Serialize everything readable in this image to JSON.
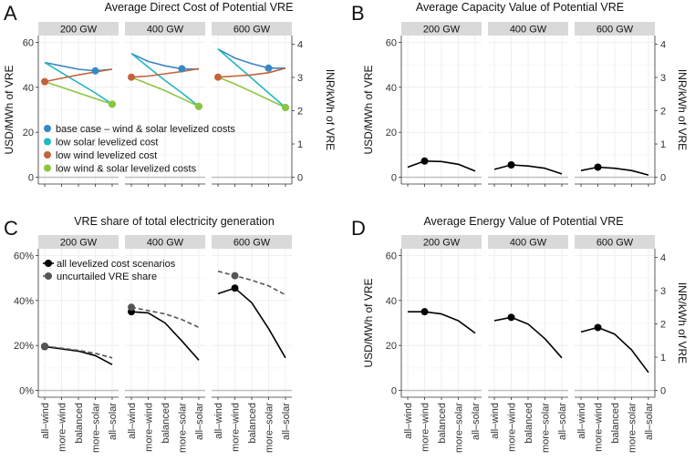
{
  "chart_data": [
    {
      "id": "A",
      "type": "line",
      "letter": "A",
      "title": "Average Direct Cost of Potential VRE",
      "ylabel": "USD/MWh of VRE",
      "y2label": "INR/kWh of VRE",
      "ylim": [
        -3,
        63
      ],
      "yticks": [
        0,
        20,
        40,
        60
      ],
      "y2ticks": [
        0,
        1,
        2,
        3,
        4
      ],
      "y2_per_y1": 14.8,
      "facets": [
        "200 GW",
        "400 GW",
        "600 GW"
      ],
      "categories": [
        "all–wind",
        "more–wind",
        "balanced",
        "more–solar",
        "all–solar"
      ],
      "legend": [
        {
          "name": "base case – wind & solar levelized costs",
          "color": "#3b86c2"
        },
        {
          "name": "low solar levelized cost",
          "color": "#22b7c3"
        },
        {
          "name": "low wind levelized cost",
          "color": "#c3633c"
        },
        {
          "name": "low wind & solar levelized costs",
          "color": "#8cc63f"
        }
      ],
      "series": [
        {
          "name": "base case – wind & solar levelized costs",
          "color": "#3b86c2",
          "highlight": 3,
          "values": [
            [
              51,
              49.5,
              48,
              47.3,
              48
            ],
            [
              55,
              51.5,
              49.5,
              48.2,
              48
            ],
            [
              57,
              53,
              50.5,
              48.5,
              48.5
            ]
          ]
        },
        {
          "name": "low solar levelized cost",
          "color": "#22b7c3",
          "highlight": 4,
          "values": [
            [
              51,
              46.5,
              42,
              37.5,
              32.5
            ],
            [
              55,
              49,
              43,
              37.5,
              31.5
            ],
            [
              57,
              50.5,
              44,
              37.5,
              31
            ]
          ]
        },
        {
          "name": "low wind levelized cost",
          "color": "#c3633c",
          "highlight": 0,
          "values": [
            [
              42.5,
              44,
              45.5,
              46.8,
              48
            ],
            [
              44.5,
              45,
              46,
              47,
              48.3
            ],
            [
              44.5,
              45,
              45.5,
              46.5,
              48.5
            ]
          ]
        },
        {
          "name": "low wind & solar levelized costs",
          "color": "#8cc63f",
          "highlight": 4,
          "values": [
            [
              42.5,
              40,
              37.5,
              35,
              32.5
            ],
            [
              44.5,
              41.5,
              38.5,
              35,
              31.5
            ],
            [
              44.5,
              41.5,
              38,
              34.5,
              31
            ]
          ]
        }
      ]
    },
    {
      "id": "B",
      "type": "line",
      "letter": "B",
      "title": "Average Capacity Value of Potential VRE",
      "ylabel": "USD/MWh of VRE",
      "y2label": "INR/kWh of VRE",
      "ylim": [
        -3,
        63
      ],
      "yticks": [
        0,
        20,
        40,
        60
      ],
      "y2ticks": [
        0,
        1,
        2,
        3,
        4
      ],
      "y2_per_y1": 14.8,
      "facets": [
        "200 GW",
        "400 GW",
        "600 GW"
      ],
      "categories": [
        "all–wind",
        "more–wind",
        "balanced",
        "more–solar",
        "all–solar"
      ],
      "series": [
        {
          "name": "capacity value",
          "color": "#000000",
          "highlight": 1,
          "values": [
            [
              4.5,
              7.2,
              7,
              5.8,
              2.8
            ],
            [
              3.5,
              5.5,
              5,
              4,
              1.5
            ],
            [
              3,
              4.5,
              4,
              3,
              1
            ]
          ]
        }
      ]
    },
    {
      "id": "C",
      "type": "line",
      "letter": "C",
      "title": "VRE share of total electricity generation",
      "ylabel": "",
      "ylim": [
        -0.03,
        0.63
      ],
      "yticks": [
        0,
        0.2,
        0.4,
        0.6
      ],
      "yticklabels": [
        "0%",
        "20%",
        "40%",
        "60%"
      ],
      "facets": [
        "200 GW",
        "400 GW",
        "600 GW"
      ],
      "categories": [
        "all–wind",
        "more–wind",
        "balanced",
        "more–solar",
        "all–solar"
      ],
      "xticklabels": [
        "all–wind",
        "more–wind",
        "balanced",
        "more–solar",
        "all–solar"
      ],
      "legend": [
        {
          "name": "all levelized cost scenarios",
          "color": "#000000"
        },
        {
          "name": "uncurtailed VRE share",
          "color": "#555555"
        }
      ],
      "series": [
        {
          "name": "all levelized cost scenarios",
          "color": "#000000",
          "highlight": 0,
          "values": [
            [
              0.195,
              0.185,
              0.175,
              0.155,
              0.115
            ],
            [
              0.35,
              0.345,
              0.3,
              0.22,
              0.135
            ],
            [
              0.43,
              0.455,
              0.39,
              0.275,
              0.145
            ]
          ]
        },
        {
          "name": "uncurtailed VRE share",
          "color": "#555555",
          "dashed": true,
          "highlight": 0,
          "values": [
            [
              0.197,
              0.188,
              0.178,
              0.165,
              0.145
            ],
            [
              0.37,
              0.355,
              0.34,
              0.315,
              0.28
            ],
            [
              0.53,
              0.51,
              0.49,
              0.465,
              0.425
            ]
          ]
        }
      ],
      "highlights": [
        [
          0,
          0
        ],
        [
          1,
          0
        ],
        [
          2,
          1
        ]
      ]
    },
    {
      "id": "D",
      "type": "line",
      "letter": "D",
      "title": "Average Energy Value of Potential VRE",
      "ylabel": "USD/MWh of VRE",
      "y2label": "INR/kWh of VRE",
      "ylim": [
        -3,
        63
      ],
      "yticks": [
        0,
        20,
        40,
        60
      ],
      "y2ticks": [
        0,
        1,
        2,
        3,
        4
      ],
      "y2_per_y1": 14.8,
      "facets": [
        "200 GW",
        "400 GW",
        "600 GW"
      ],
      "categories": [
        "all–wind",
        "more–wind",
        "balanced",
        "more–solar",
        "all–solar"
      ],
      "xticklabels": [
        "all–wind",
        "more–wind",
        "balanced",
        "more–solar",
        "all–solar"
      ],
      "series": [
        {
          "name": "energy value",
          "color": "#000000",
          "highlight": 1,
          "values": [
            [
              35,
              35,
              34,
              31,
              25.5
            ],
            [
              31,
              32.5,
              29.5,
              23,
              14.5
            ],
            [
              26,
              28,
              25,
              18,
              8
            ]
          ]
        }
      ]
    }
  ]
}
